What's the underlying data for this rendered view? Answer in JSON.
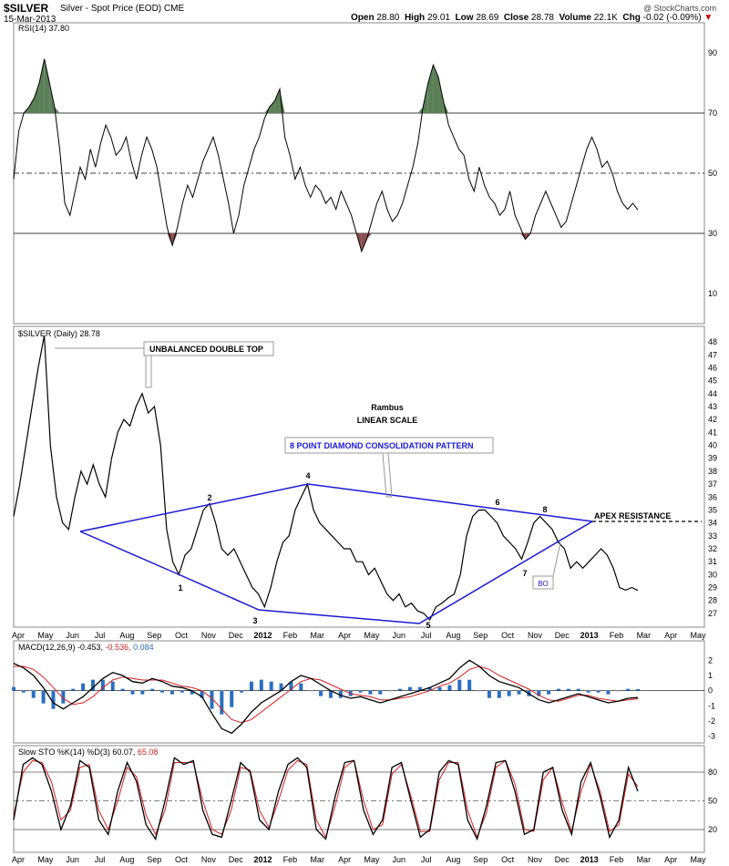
{
  "header": {
    "symbol": "$SILVER",
    "description": "Silver - Spot Price (EOD) CME",
    "date": "15-Mar-2013",
    "open_label": "Open",
    "open": "28.80",
    "high_label": "High",
    "high": "29.01",
    "low_label": "Low",
    "low": "28.69",
    "close_label": "Close",
    "close": "28.78",
    "volume_label": "Volume",
    "volume": "22.1K",
    "chg_label": "Chg",
    "chg": "-0.02 (-0.09%)",
    "watermark": "@ StockCharts.com"
  },
  "colors": {
    "price": "#000000",
    "pattern": "#1a1ad6",
    "rsi_overbought": "#5a7f56",
    "rsi_oversold": "#8a5050",
    "macd_signal": "#d42020",
    "macd_hist": "#2a6fc0",
    "sto_d": "#d42020",
    "grid": "#000000"
  },
  "chart_data": [
    {
      "type": "line",
      "panel": "rsi",
      "legend": "RSI(14) 37.80",
      "ylim": [
        0,
        100
      ],
      "y_ticks": [
        90,
        70,
        50,
        30,
        10
      ],
      "reference_lines": [
        70,
        50,
        30
      ],
      "series": [
        {
          "name": "RSI(14)",
          "values": [
            48,
            64,
            70,
            72,
            75,
            80,
            88,
            80,
            72,
            58,
            40,
            36,
            44,
            52,
            48,
            58,
            52,
            60,
            66,
            62,
            56,
            58,
            62,
            54,
            48,
            56,
            62,
            58,
            52,
            42,
            32,
            26,
            32,
            40,
            46,
            42,
            48,
            54,
            58,
            62,
            56,
            48,
            40,
            30,
            36,
            46,
            52,
            58,
            62,
            68,
            72,
            74,
            78,
            62,
            56,
            48,
            52,
            46,
            42,
            46,
            44,
            40,
            42,
            38,
            44,
            40,
            36,
            30,
            24,
            28,
            34,
            40,
            44,
            38,
            34,
            36,
            40,
            46,
            52,
            60,
            72,
            80,
            86,
            82,
            74,
            66,
            62,
            58,
            56,
            48,
            44,
            52,
            46,
            42,
            40,
            36,
            38,
            44,
            36,
            32,
            28,
            30,
            36,
            40,
            44,
            40,
            36,
            32,
            34,
            40,
            46,
            52,
            58,
            62,
            58,
            52,
            54,
            50,
            44,
            40,
            38,
            40,
            37.8
          ]
        }
      ]
    },
    {
      "type": "line",
      "panel": "price",
      "legend": "$SILVER (Daily) 28.78",
      "ylim": [
        26,
        48.5
      ],
      "y_ticks": [
        48,
        47,
        46,
        45,
        44,
        43,
        42,
        41,
        40,
        39,
        38,
        37,
        36,
        35,
        34,
        33,
        32,
        31,
        30,
        29,
        28,
        27
      ],
      "series": [
        {
          "name": "$SILVER",
          "values": [
            34.5,
            37,
            40,
            43,
            46,
            48.5,
            40,
            36,
            34,
            33.5,
            36,
            38,
            37,
            38.5,
            37,
            36,
            39,
            41,
            42,
            41.5,
            43,
            44,
            42.5,
            43,
            40,
            33.5,
            31,
            30,
            31.5,
            32,
            33.5,
            35,
            35.5,
            34,
            32,
            31.5,
            32,
            31,
            30,
            29,
            28.5,
            27.5,
            29,
            31,
            32.5,
            33,
            35,
            36,
            37,
            35,
            34,
            33.5,
            33,
            32.5,
            32,
            32,
            31,
            31,
            30,
            30.5,
            29.5,
            28.5,
            28,
            28.5,
            27.5,
            27.8,
            27.2,
            27,
            26.5,
            27.5,
            27.8,
            28.2,
            28.5,
            30,
            33,
            34.5,
            35,
            35,
            34.5,
            34,
            33,
            32.5,
            32,
            31.2,
            32.5,
            34,
            34.5,
            34,
            33.5,
            32.5,
            32,
            30.5,
            31,
            30.5,
            31,
            31.5,
            32,
            31.5,
            30.5,
            29,
            28.8,
            29,
            28.78
          ]
        }
      ],
      "annotations": [
        {
          "text": "UNBALANCED DOUBLE TOP"
        },
        {
          "text": "Rambus"
        },
        {
          "text": "LINEAR SCALE"
        },
        {
          "text": "8 POINT DIAMOND CONSOLIDATION PATTERN"
        },
        {
          "text": "APEX RESISTANCE"
        },
        {
          "text": "BO"
        }
      ],
      "pivot_labels": [
        "1",
        "2",
        "3",
        "4",
        "5",
        "6",
        "7",
        "8"
      ]
    },
    {
      "type": "line",
      "panel": "macd",
      "legend_name": "MACD(12,26,9)",
      "legend_values": [
        "-0.453",
        "-0.536",
        "0.084"
      ],
      "ylim": [
        -3.2,
        2.8
      ],
      "y_ticks": [
        2,
        1,
        0,
        -1,
        -2,
        -3
      ],
      "series": [
        {
          "name": "MACD",
          "values": [
            1.8,
            1.5,
            1.0,
            0.2,
            -0.8,
            -1.2,
            -0.8,
            -0.4,
            0.2,
            0.8,
            1.2,
            1.0,
            0.6,
            0.5,
            0.8,
            0.6,
            0.3,
            0.2,
            0.0,
            -0.4,
            -1.5,
            -2.5,
            -2.8,
            -2.2,
            -1.4,
            -0.8,
            -0.4,
            0.0,
            0.6,
            1.0,
            0.8,
            0.4,
            0.0,
            -0.3,
            -0.5,
            -0.4,
            -0.6,
            -0.8,
            -0.6,
            -0.4,
            -0.2,
            0.0,
            0.2,
            0.5,
            0.8,
            1.5,
            2.0,
            1.6,
            1.0,
            0.6,
            0.4,
            0.2,
            -0.2,
            -0.6,
            -0.8,
            -0.6,
            -0.4,
            -0.2,
            -0.4,
            -0.6,
            -0.8,
            -0.7,
            -0.5,
            -0.453
          ]
        },
        {
          "name": "Signal",
          "values": [
            1.6,
            1.6,
            1.4,
            0.9,
            0.2,
            -0.5,
            -0.9,
            -0.8,
            -0.4,
            0.2,
            0.7,
            0.9,
            0.8,
            0.7,
            0.7,
            0.7,
            0.5,
            0.3,
            0.2,
            0.0,
            -0.5,
            -1.2,
            -1.9,
            -2.1,
            -1.9,
            -1.4,
            -0.9,
            -0.4,
            0.1,
            0.6,
            0.8,
            0.7,
            0.4,
            0.1,
            -0.2,
            -0.3,
            -0.4,
            -0.6,
            -0.6,
            -0.5,
            -0.4,
            -0.2,
            0.0,
            0.3,
            0.5,
            0.9,
            1.4,
            1.6,
            1.4,
            1.0,
            0.7,
            0.4,
            0.1,
            -0.3,
            -0.6,
            -0.7,
            -0.5,
            -0.3,
            -0.3,
            -0.5,
            -0.6,
            -0.7,
            -0.6,
            -0.536
          ]
        }
      ]
    },
    {
      "type": "line",
      "panel": "stochastic",
      "legend_name": "Slow STO %K(14) %D(3)",
      "legend_values": [
        "60.07",
        "65.08"
      ],
      "ylim": [
        0,
        100
      ],
      "y_ticks": [
        80,
        50,
        20
      ],
      "reference_lines": [
        80,
        50,
        20
      ],
      "series": [
        {
          "name": "%K",
          "values": [
            30,
            88,
            95,
            88,
            60,
            20,
            45,
            92,
            85,
            30,
            15,
            60,
            90,
            70,
            25,
            10,
            50,
            95,
            88,
            92,
            40,
            15,
            12,
            50,
            90,
            80,
            30,
            20,
            60,
            88,
            95,
            85,
            20,
            10,
            55,
            90,
            92,
            40,
            15,
            30,
            85,
            90,
            50,
            12,
            20,
            80,
            92,
            88,
            30,
            10,
            45,
            90,
            92,
            60,
            15,
            20,
            80,
            85,
            40,
            15,
            70,
            90,
            55,
            12,
            30,
            85,
            60
          ]
        },
        {
          "name": "%D",
          "values": [
            35,
            80,
            92,
            90,
            70,
            30,
            40,
            85,
            88,
            40,
            20,
            50,
            85,
            75,
            35,
            15,
            40,
            90,
            90,
            90,
            50,
            20,
            15,
            40,
            85,
            82,
            40,
            22,
            50,
            82,
            92,
            88,
            30,
            12,
            45,
            85,
            92,
            50,
            20,
            25,
            78,
            88,
            55,
            18,
            18,
            72,
            90,
            90,
            40,
            12,
            38,
            85,
            92,
            68,
            20,
            18,
            72,
            85,
            48,
            18,
            60,
            88,
            60,
            18,
            25,
            78,
            65
          ]
        }
      ]
    }
  ],
  "x_axis": {
    "months": [
      "Apr",
      "May",
      "Jun",
      "Jul",
      "Aug",
      "Sep",
      "Oct",
      "Nov",
      "Dec",
      "2012",
      "Feb",
      "Mar",
      "Apr",
      "May",
      "Jun",
      "Jul",
      "Aug",
      "Sep",
      "Oct",
      "Nov",
      "Dec",
      "2013",
      "Feb",
      "Mar",
      "Apr",
      "May"
    ]
  }
}
